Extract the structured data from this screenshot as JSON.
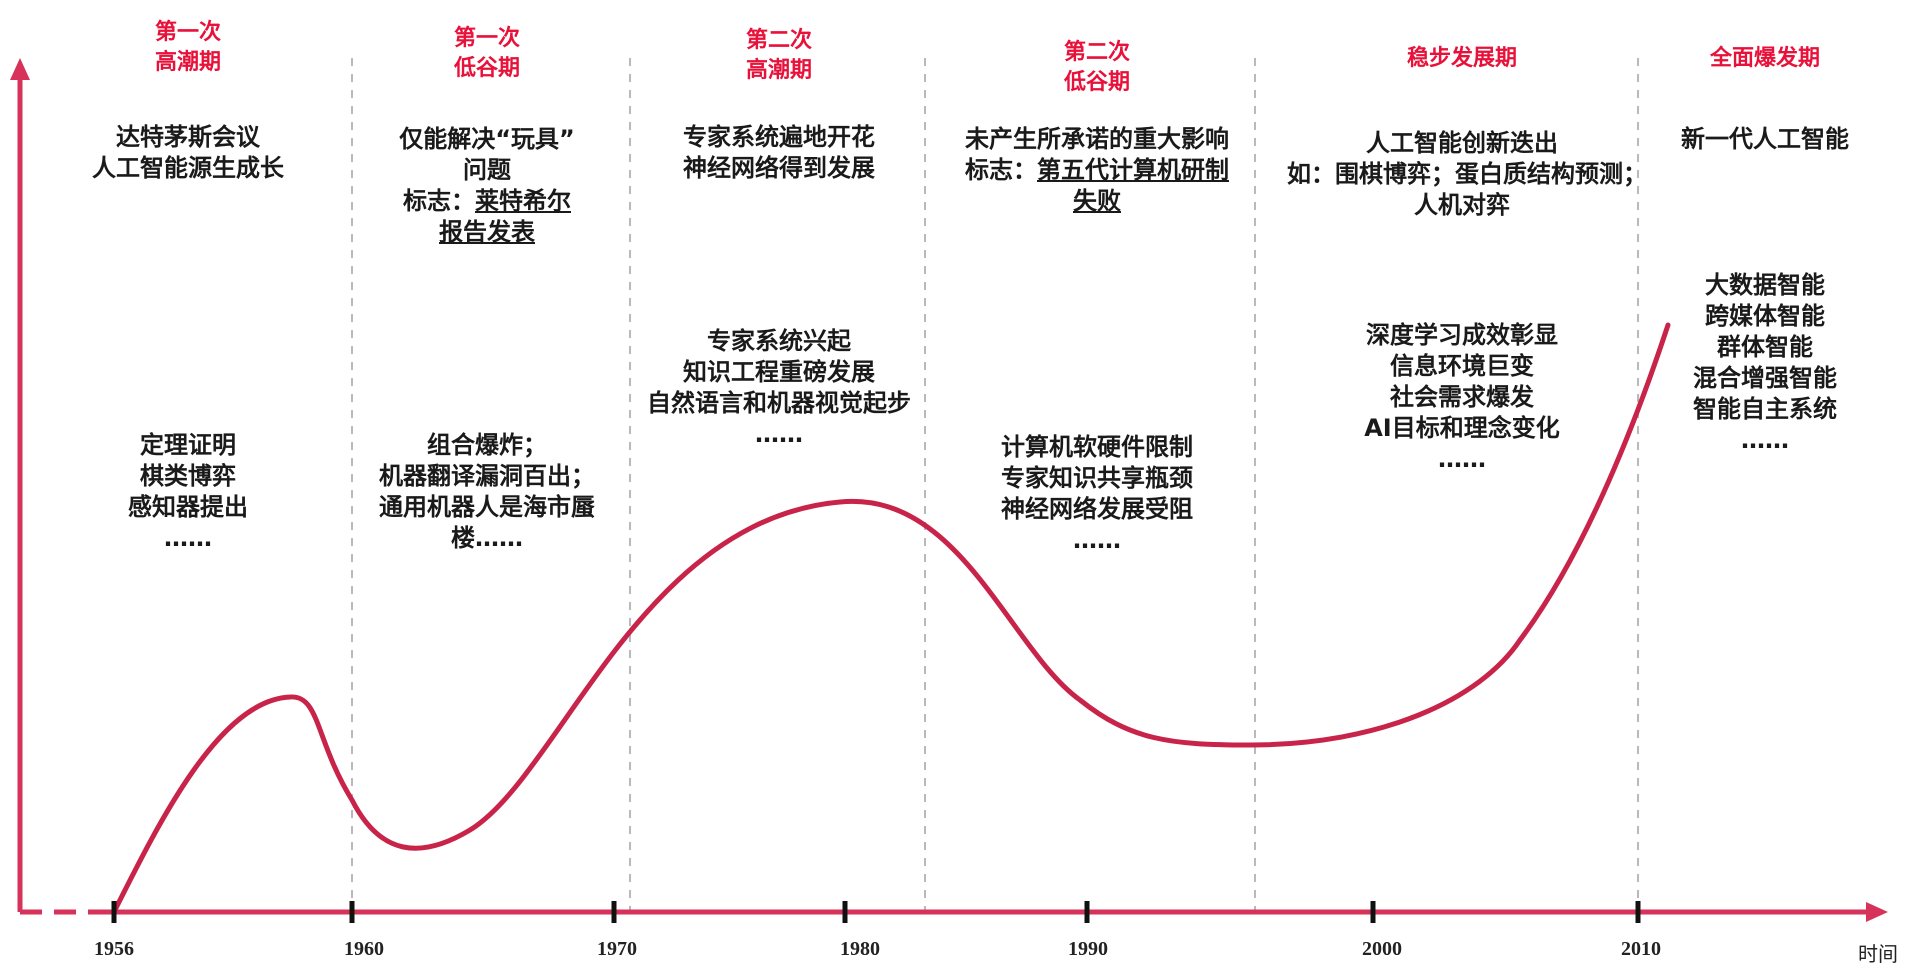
{
  "periods": [
    {
      "title": [
        "第一次",
        "高潮期"
      ],
      "top": [
        [
          {
            "t": "达特茅斯会议"
          }
        ],
        [
          {
            "t": "人工智能源生成长"
          }
        ]
      ],
      "bottom": [
        [
          {
            "t": "定理证明"
          }
        ],
        [
          {
            "t": "棋类博弈"
          }
        ],
        [
          {
            "t": "感知器提出"
          }
        ],
        [
          {
            "t": "……"
          }
        ]
      ]
    },
    {
      "title": [
        "第一次",
        "低谷期"
      ],
      "top": [
        [
          {
            "t": "仅能解决“玩具”"
          }
        ],
        [
          {
            "t": "问题"
          }
        ],
        [
          {
            "t": "标志："
          },
          {
            "t": "莱特希尔",
            "u": true
          }
        ],
        [
          {
            "t": "报告发表",
            "u": true
          }
        ]
      ],
      "bottom": [
        [
          {
            "t": "组合爆炸；"
          }
        ],
        [
          {
            "t": "机器翻译漏洞百出；"
          }
        ],
        [
          {
            "t": "通用机器人是海市蜃"
          }
        ],
        [
          {
            "t": "楼……"
          }
        ]
      ]
    },
    {
      "title": [
        "第二次",
        "高潮期"
      ],
      "top": [
        [
          {
            "t": "专家系统遍地开花"
          }
        ],
        [
          {
            "t": "神经网络得到发展"
          }
        ]
      ],
      "bottom": [
        [
          {
            "t": "专家系统兴起"
          }
        ],
        [
          {
            "t": "知识工程重磅发展"
          }
        ],
        [
          {
            "t": "自然语言和机器视觉起步"
          }
        ],
        [
          {
            "t": "……"
          }
        ]
      ]
    },
    {
      "title": [
        "第二次",
        "低谷期"
      ],
      "top": [
        [
          {
            "t": "未产生所承诺的重大影响"
          }
        ],
        [
          {
            "t": "标志："
          },
          {
            "t": "第五代计算机研制",
            "u": true
          }
        ],
        [
          {
            "t": "失败",
            "u": true
          }
        ]
      ],
      "bottom": [
        [
          {
            "t": "计算机软硬件限制"
          }
        ],
        [
          {
            "t": "专家知识共享瓶颈"
          }
        ],
        [
          {
            "t": "神经网络发展受阻"
          }
        ],
        [
          {
            "t": "……"
          }
        ]
      ]
    },
    {
      "title": [
        "稳步发展期"
      ],
      "top": [
        [
          {
            "t": "人工智能创新迭出"
          }
        ],
        [
          {
            "t": "如：围棋博弈；蛋白质结构预测；"
          }
        ],
        [
          {
            "t": "人机对弈"
          }
        ]
      ],
      "bottom": [
        [
          {
            "t": "深度学习成效彰显"
          }
        ],
        [
          {
            "t": "信息环境巨变"
          }
        ],
        [
          {
            "t": "社会需求爆发"
          }
        ],
        [
          {
            "t": "AI目标和理念变化"
          }
        ],
        [
          {
            "t": "……"
          }
        ]
      ]
    },
    {
      "title": [
        "全面爆发期"
      ],
      "top": [
        [
          {
            "t": "新一代人工智能"
          }
        ]
      ],
      "bottom": [
        [
          {
            "t": "大数据智能"
          }
        ],
        [
          {
            "t": "跨媒体智能"
          }
        ],
        [
          {
            "t": "群体智能"
          }
        ],
        [
          {
            "t": "混合增强智能"
          }
        ],
        [
          {
            "t": "智能自主系统"
          }
        ],
        [
          {
            "t": "……"
          }
        ]
      ]
    }
  ],
  "timeline": {
    "years": [
      "1956",
      "1960",
      "1970",
      "1980",
      "1990",
      "2000",
      "2010"
    ],
    "axis_label": "时间"
  },
  "colors": {
    "accent": "#e8113a",
    "curve": "#c8244a",
    "axis": "#d6325a",
    "divider": "#b9b9b9",
    "tick": "#111111"
  }
}
